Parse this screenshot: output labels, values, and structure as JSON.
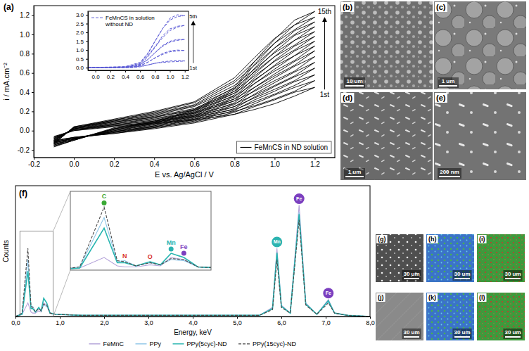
{
  "chart_data": [
    {
      "type": "line",
      "panel_label": "(a)",
      "x_label": "E vs. Ag/AgCl / V",
      "y_label": "i / mA.cm⁻²",
      "x": [
        -0.1,
        0,
        0.2,
        0.4,
        0.6,
        0.8,
        0.9,
        1.0,
        1.1,
        1.2,
        1.1,
        1.0,
        0.9,
        0.8,
        0.6,
        0.4,
        0.2,
        0,
        -0.1
      ],
      "xlim": [
        -0.2,
        1.3
      ],
      "xticks": [
        -0.2,
        {
          "value": 0,
          "label": "0.0"
        },
        0.2,
        0.4,
        0.6,
        0.8,
        {
          "value": 1,
          "label": "1.0"
        },
        1.2
      ],
      "ylim": [
        -0.28,
        1.3
      ],
      "yticks": [
        -0.2,
        {
          "value": 0,
          "label": "0.0"
        },
        0.2,
        0.4,
        0.6,
        0.8,
        {
          "value": 1,
          "label": "1.0"
        },
        1.2
      ],
      "legend": "lower right",
      "annotations": [
        "1st",
        "15th"
      ],
      "series": [
        {
          "name": "FeMnCS in ND solution",
          "color": "#000000",
          "line_style": "solid",
          "values": [
            [
              -0.06,
              0.0,
              0.04,
              0.07,
              0.11,
              0.17,
              0.22,
              0.28,
              0.36,
              0.45,
              0.4,
              0.32,
              0.25,
              0.17,
              0.08,
              0.02,
              -0.03,
              -0.07,
              -0.1
            ],
            [
              -0.07,
              0.0,
              0.05,
              0.08,
              0.12,
              0.2,
              0.26,
              0.33,
              0.41,
              0.52,
              0.45,
              0.37,
              0.28,
              0.19,
              0.09,
              0.03,
              -0.03,
              -0.07,
              -0.11
            ],
            [
              -0.07,
              0.01,
              0.05,
              0.09,
              0.14,
              0.22,
              0.3,
              0.38,
              0.47,
              0.58,
              0.51,
              0.41,
              0.32,
              0.21,
              0.1,
              0.03,
              -0.02,
              -0.07,
              -0.11
            ],
            [
              -0.08,
              0.01,
              0.06,
              0.1,
              0.15,
              0.25,
              0.34,
              0.43,
              0.52,
              0.65,
              0.56,
              0.46,
              0.35,
              0.23,
              0.11,
              0.04,
              -0.02,
              -0.08,
              -0.12
            ],
            [
              -0.08,
              0.01,
              0.06,
              0.11,
              0.16,
              0.28,
              0.37,
              0.47,
              0.57,
              0.71,
              0.61,
              0.5,
              0.38,
              0.25,
              0.12,
              0.04,
              -0.01,
              -0.08,
              -0.12
            ],
            [
              -0.09,
              0.01,
              0.07,
              0.12,
              0.18,
              0.31,
              0.41,
              0.52,
              0.62,
              0.77,
              0.67,
              0.55,
              0.42,
              0.27,
              0.13,
              0.05,
              -0.01,
              -0.08,
              -0.12
            ],
            [
              -0.09,
              0.02,
              0.07,
              0.13,
              0.19,
              0.33,
              0.45,
              0.57,
              0.68,
              0.83,
              0.72,
              0.59,
              0.45,
              0.29,
              0.14,
              0.05,
              -0.01,
              -0.08,
              -0.13
            ],
            [
              -0.1,
              0.02,
              0.08,
              0.14,
              0.21,
              0.36,
              0.49,
              0.62,
              0.73,
              0.88,
              0.78,
              0.64,
              0.49,
              0.31,
              0.15,
              0.06,
              0.0,
              -0.08,
              -0.13
            ],
            [
              -0.1,
              0.02,
              0.09,
              0.14,
              0.22,
              0.39,
              0.53,
              0.67,
              0.78,
              0.93,
              0.83,
              0.68,
              0.52,
              0.33,
              0.16,
              0.07,
              0.0,
              -0.09,
              -0.14
            ],
            [
              -0.11,
              0.03,
              0.09,
              0.15,
              0.23,
              0.41,
              0.57,
              0.72,
              0.84,
              0.98,
              0.88,
              0.73,
              0.55,
              0.35,
              0.17,
              0.07,
              0.01,
              -0.09,
              -0.14
            ],
            [
              -0.11,
              0.03,
              0.1,
              0.16,
              0.25,
              0.44,
              0.61,
              0.77,
              0.89,
              1.03,
              0.94,
              0.77,
              0.59,
              0.37,
              0.18,
              0.08,
              0.01,
              -0.09,
              -0.15
            ],
            [
              -0.12,
              0.03,
              0.1,
              0.17,
              0.26,
              0.47,
              0.64,
              0.81,
              0.94,
              1.08,
              0.99,
              0.82,
              0.62,
              0.39,
              0.19,
              0.08,
              0.02,
              -0.09,
              -0.15
            ],
            [
              -0.13,
              0.03,
              0.11,
              0.18,
              0.27,
              0.5,
              0.68,
              0.86,
              1.0,
              1.13,
              1.04,
              0.86,
              0.65,
              0.41,
              0.2,
              0.09,
              0.02,
              -0.1,
              -0.16
            ],
            [
              -0.13,
              0.04,
              0.11,
              0.19,
              0.29,
              0.52,
              0.72,
              0.91,
              1.05,
              1.18,
              1.1,
              0.91,
              0.69,
              0.43,
              0.21,
              0.09,
              0.02,
              -0.1,
              -0.16
            ],
            [
              -0.14,
              0.04,
              0.12,
              0.2,
              0.3,
              0.55,
              0.76,
              0.96,
              1.1,
              1.24,
              1.15,
              0.95,
              0.72,
              0.45,
              0.22,
              0.1,
              0.03,
              -0.1,
              -0.17
            ]
          ]
        }
      ]
    },
    {
      "type": "line",
      "x": [
        -0.1,
        0.2,
        0.5,
        0.6,
        0.7,
        0.8,
        0.9,
        1.0,
        1.1,
        1.2,
        1.1,
        1.0,
        0.9,
        0.8,
        0.7,
        0.6,
        0.4,
        0,
        -0.1
      ],
      "xlim": [
        -0.1,
        1.25
      ],
      "xticks": [
        {
          "value": 0,
          "label": "0.0"
        },
        0.2,
        0.4,
        0.6,
        0.8,
        {
          "value": 1,
          "label": "1.0"
        },
        1.2
      ],
      "ylim": [
        -0.15,
        3.2
      ],
      "yticks": [
        {
          "value": 0,
          "label": "0.0"
        },
        0.5,
        {
          "value": 1,
          "label": "1.0"
        },
        1.5,
        {
          "value": 2,
          "label": "2.0"
        },
        2.5,
        {
          "value": 3,
          "label": "3.0"
        }
      ],
      "legend": "upper left",
      "annotations": [
        "1st",
        "5th"
      ],
      "series": [
        {
          "name": "FeMnCS in solution without ND",
          "color": "#5b5bd6",
          "line_style": "dashed",
          "values": [
            [
              0,
              0,
              0.01,
              0.05,
              0.15,
              0.25,
              0.3,
              0.33,
              0.35,
              0.38,
              0.4,
              0.38,
              0.33,
              0.25,
              0.15,
              0.07,
              0.02,
              0.0,
              0.0
            ],
            [
              0,
              0,
              0.02,
              0.1,
              0.3,
              0.55,
              0.75,
              0.9,
              0.95,
              0.98,
              1.0,
              0.95,
              0.8,
              0.55,
              0.3,
              0.12,
              0.03,
              0.01,
              0.0
            ],
            [
              0,
              0,
              0.03,
              0.15,
              0.45,
              0.85,
              1.2,
              1.45,
              1.55,
              1.6,
              1.6,
              1.5,
              1.25,
              0.85,
              0.45,
              0.18,
              0.04,
              0.01,
              0.0
            ],
            [
              0,
              0,
              0.04,
              0.2,
              0.6,
              1.15,
              1.7,
              2.1,
              2.3,
              2.4,
              2.35,
              2.2,
              1.8,
              1.2,
              0.65,
              0.25,
              0.05,
              0.01,
              0.0
            ],
            [
              0,
              0.01,
              0.05,
              0.25,
              0.75,
              1.5,
              2.2,
              2.8,
              3.0,
              2.95,
              2.9,
              2.7,
              2.2,
              1.5,
              0.8,
              0.3,
              0.06,
              0.02,
              0.01
            ]
          ]
        }
      ]
    },
    {
      "type": "line",
      "panel_label": "(f)",
      "x_label": "Energy, keV",
      "y_label": "Counts",
      "x": [
        0,
        0.15,
        0.28,
        0.35,
        0.39,
        0.45,
        0.525,
        0.58,
        0.637,
        0.705,
        0.78,
        0.9,
        1.5,
        3.0,
        5.5,
        5.8,
        5.9,
        6.0,
        6.2,
        6.4,
        6.55,
        6.8,
        7.06,
        7.2,
        7.5,
        8.0
      ],
      "xlim": [
        0,
        8
      ],
      "xticks": [
        {
          "value": 0,
          "label": "0,0"
        },
        {
          "value": 1,
          "label": "1,0"
        },
        {
          "value": 2,
          "label": "2,0"
        },
        {
          "value": 3,
          "label": "3,0"
        },
        {
          "value": 4,
          "label": "4,0"
        },
        {
          "value": 5,
          "label": "5,0"
        },
        {
          "value": 6,
          "label": "6,0"
        },
        {
          "value": 7,
          "label": "7,0"
        },
        {
          "value": 8,
          "label": "8,0"
        }
      ],
      "ylim": [
        0,
        115
      ],
      "tick_labels": "x",
      "legend": "bottom",
      "annotations": [
        {
          "text": "Mn",
          "x": 5.9,
          "color": "#2bb3b0",
          "marker": "circle"
        },
        {
          "text": "Fe",
          "x": 6.4,
          "color": "#7b3fbf",
          "marker": "circle"
        },
        {
          "text": "Fe",
          "x": 7.06,
          "color": "#7b3fbf",
          "marker": "circle"
        }
      ],
      "series": [
        {
          "name": "FeMnC",
          "color": "#b3a2d9",
          "line_style": "solid",
          "values": [
            0,
            2,
            12,
            4,
            3,
            3,
            5,
            4,
            12,
            10,
            3,
            2,
            1,
            1,
            1,
            8,
            60,
            10,
            3,
            98,
            12,
            2,
            15,
            3,
            1,
            0
          ]
        },
        {
          "name": "PPy",
          "color": "#8fc6e8",
          "line_style": "solid",
          "values": [
            0,
            3,
            50,
            8,
            9,
            4,
            7,
            5,
            10,
            9,
            3,
            2,
            1,
            1,
            1,
            7,
            55,
            9,
            3,
            92,
            11,
            2,
            13,
            3,
            1,
            0
          ]
        },
        {
          "name": "PPy(5cyc)-ND",
          "color": "#27b5b0",
          "line_style": "solid",
          "values": [
            0,
            2,
            40,
            7,
            7,
            4,
            8,
            5,
            16,
            12,
            3,
            2,
            1,
            1,
            1,
            7,
            56,
            9,
            3,
            90,
            11,
            2,
            14,
            3,
            1,
            0
          ]
        },
        {
          "name": "PPy(15cyc)-ND",
          "color": "#4a4a4a",
          "line_style": "dashed",
          "values": [
            0,
            3,
            60,
            9,
            8,
            4,
            7,
            5,
            11,
            10,
            3,
            2,
            1,
            1,
            1,
            6,
            50,
            8,
            3,
            85,
            10,
            2,
            12,
            3,
            1,
            0
          ]
        }
      ]
    },
    {
      "type": "line",
      "xlim": [
        0.1,
        0.85
      ],
      "ylim": [
        0,
        75
      ],
      "tick_labels": false,
      "annotations": [
        {
          "text": "C",
          "x": 0.28,
          "color": "#3aa935",
          "marker": "circle"
        },
        {
          "text": "N",
          "x": 0.39,
          "color": "#d9332b"
        },
        {
          "text": "O",
          "x": 0.525,
          "color": "#d9332b"
        },
        {
          "text": "Mn",
          "x": 0.637,
          "color": "#2bb3b0",
          "marker": "circle"
        },
        {
          "text": "Fe",
          "x": 0.705,
          "color": "#7b3fbf",
          "marker": "circle"
        }
      ]
    }
  ],
  "images": [
    {
      "label": "(b)",
      "scale_bar": "10 um"
    },
    {
      "label": "(c)",
      "scale_bar": "1 um"
    },
    {
      "label": "(d)",
      "scale_bar": "1 um"
    },
    {
      "label": "(e)",
      "scale_bar": "200 nm"
    },
    {
      "label": "(g)",
      "scale_bar": "30 um"
    },
    {
      "label": "(h)",
      "scale_bar": "30 um"
    },
    {
      "label": "(i)",
      "scale_bar": "30 um"
    },
    {
      "label": "(j)",
      "scale_bar": "30 um"
    },
    {
      "label": "(k)",
      "scale_bar": "30 um"
    },
    {
      "label": "(l)",
      "scale_bar": "30 um"
    }
  ]
}
